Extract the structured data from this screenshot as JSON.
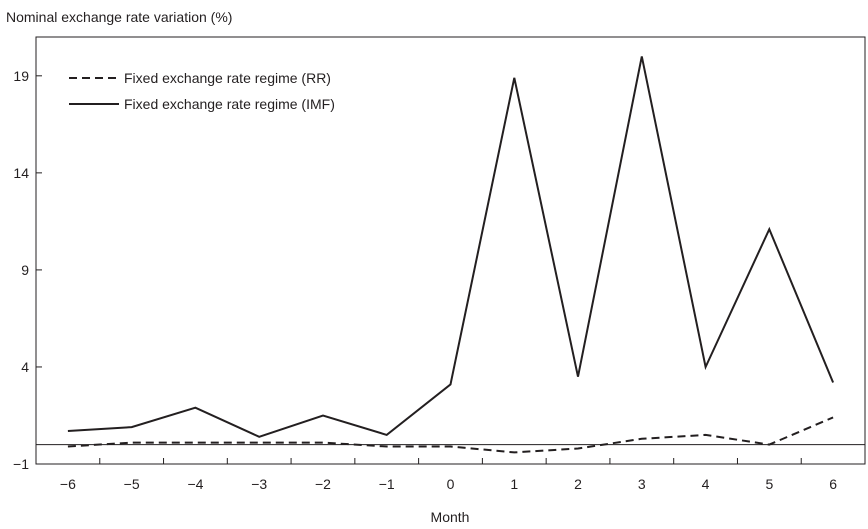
{
  "chart_data": {
    "type": "line",
    "ylabel": "Nominal exchange rate variation (%)",
    "xlabel": "Month",
    "x": [
      -6,
      -5,
      -4,
      -3,
      -2,
      -1,
      0,
      1,
      2,
      3,
      4,
      5,
      6
    ],
    "x_tick_labels": [
      "−6",
      "−5",
      "−4",
      "−3",
      "−2",
      "−1",
      "0",
      "1",
      "2",
      "3",
      "4",
      "5",
      "6"
    ],
    "yticks": [
      -1,
      4,
      9,
      14,
      19
    ],
    "y_tick_labels": [
      "−1",
      "4",
      "9",
      "14",
      "19"
    ],
    "ylim": [
      -1,
      21
    ],
    "xlim": [
      -6.5,
      6.5
    ],
    "reference_line": 0,
    "grid": false,
    "legend_position": "top-left",
    "series": [
      {
        "name": "Fixed exchange rate regime (RR)",
        "style": "dashed",
        "values": [
          -0.1,
          0.1,
          0.1,
          0.1,
          0.1,
          -0.1,
          -0.1,
          -0.4,
          -0.2,
          0.3,
          0.5,
          0.0,
          1.4
        ]
      },
      {
        "name": "Fixed exchange rate regime (IMF)",
        "style": "solid",
        "values": [
          0.7,
          0.9,
          1.9,
          0.4,
          1.5,
          0.5,
          3.1,
          18.9,
          3.5,
          20.0,
          4.0,
          11.1,
          3.2
        ]
      }
    ],
    "colors": {
      "line": "#231f20",
      "axis": "#231f20"
    }
  }
}
